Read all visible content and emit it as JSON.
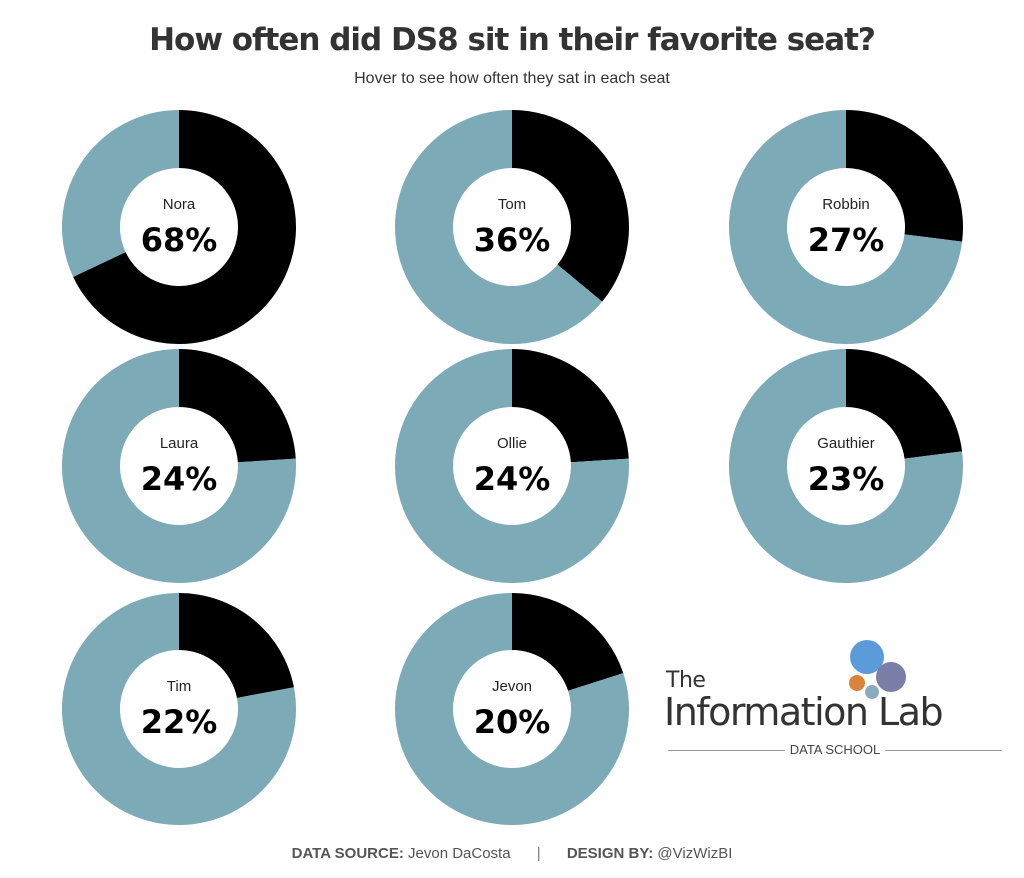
{
  "chart_data": {
    "type": "pie",
    "variant": "donut",
    "title": "How often did DS8 sit in their favorite seat?",
    "subtitle": "Hover to see how often they sat in each seat",
    "series": [
      {
        "name": "Nora",
        "value": 68,
        "label": "68%"
      },
      {
        "name": "Tom",
        "value": 36,
        "label": "36%"
      },
      {
        "name": "Robbin",
        "value": 27,
        "label": "27%"
      },
      {
        "name": "Laura",
        "value": 24,
        "label": "24%"
      },
      {
        "name": "Ollie",
        "value": 24,
        "label": "24%"
      },
      {
        "name": "Gauthier",
        "value": 23,
        "label": "23%"
      },
      {
        "name": "Tim",
        "value": 22,
        "label": "22%"
      },
      {
        "name": "Jevon",
        "value": 20,
        "label": "20%"
      }
    ],
    "colors": {
      "favorite": "#000000",
      "other": "#7daab7"
    }
  },
  "footer": {
    "source_label": "DATA SOURCE:",
    "source_value": "Jevon DaCosta",
    "separator": "|",
    "design_label": "DESIGN BY:",
    "design_value": "@VizWizBI"
  },
  "logo": {
    "the": "The",
    "name": "Information Lab",
    "sub": "DATA SCHOOL",
    "dot_colors": [
      "#5b9bd9",
      "#7b7fa8",
      "#d9843b",
      "#8aabbf"
    ]
  }
}
